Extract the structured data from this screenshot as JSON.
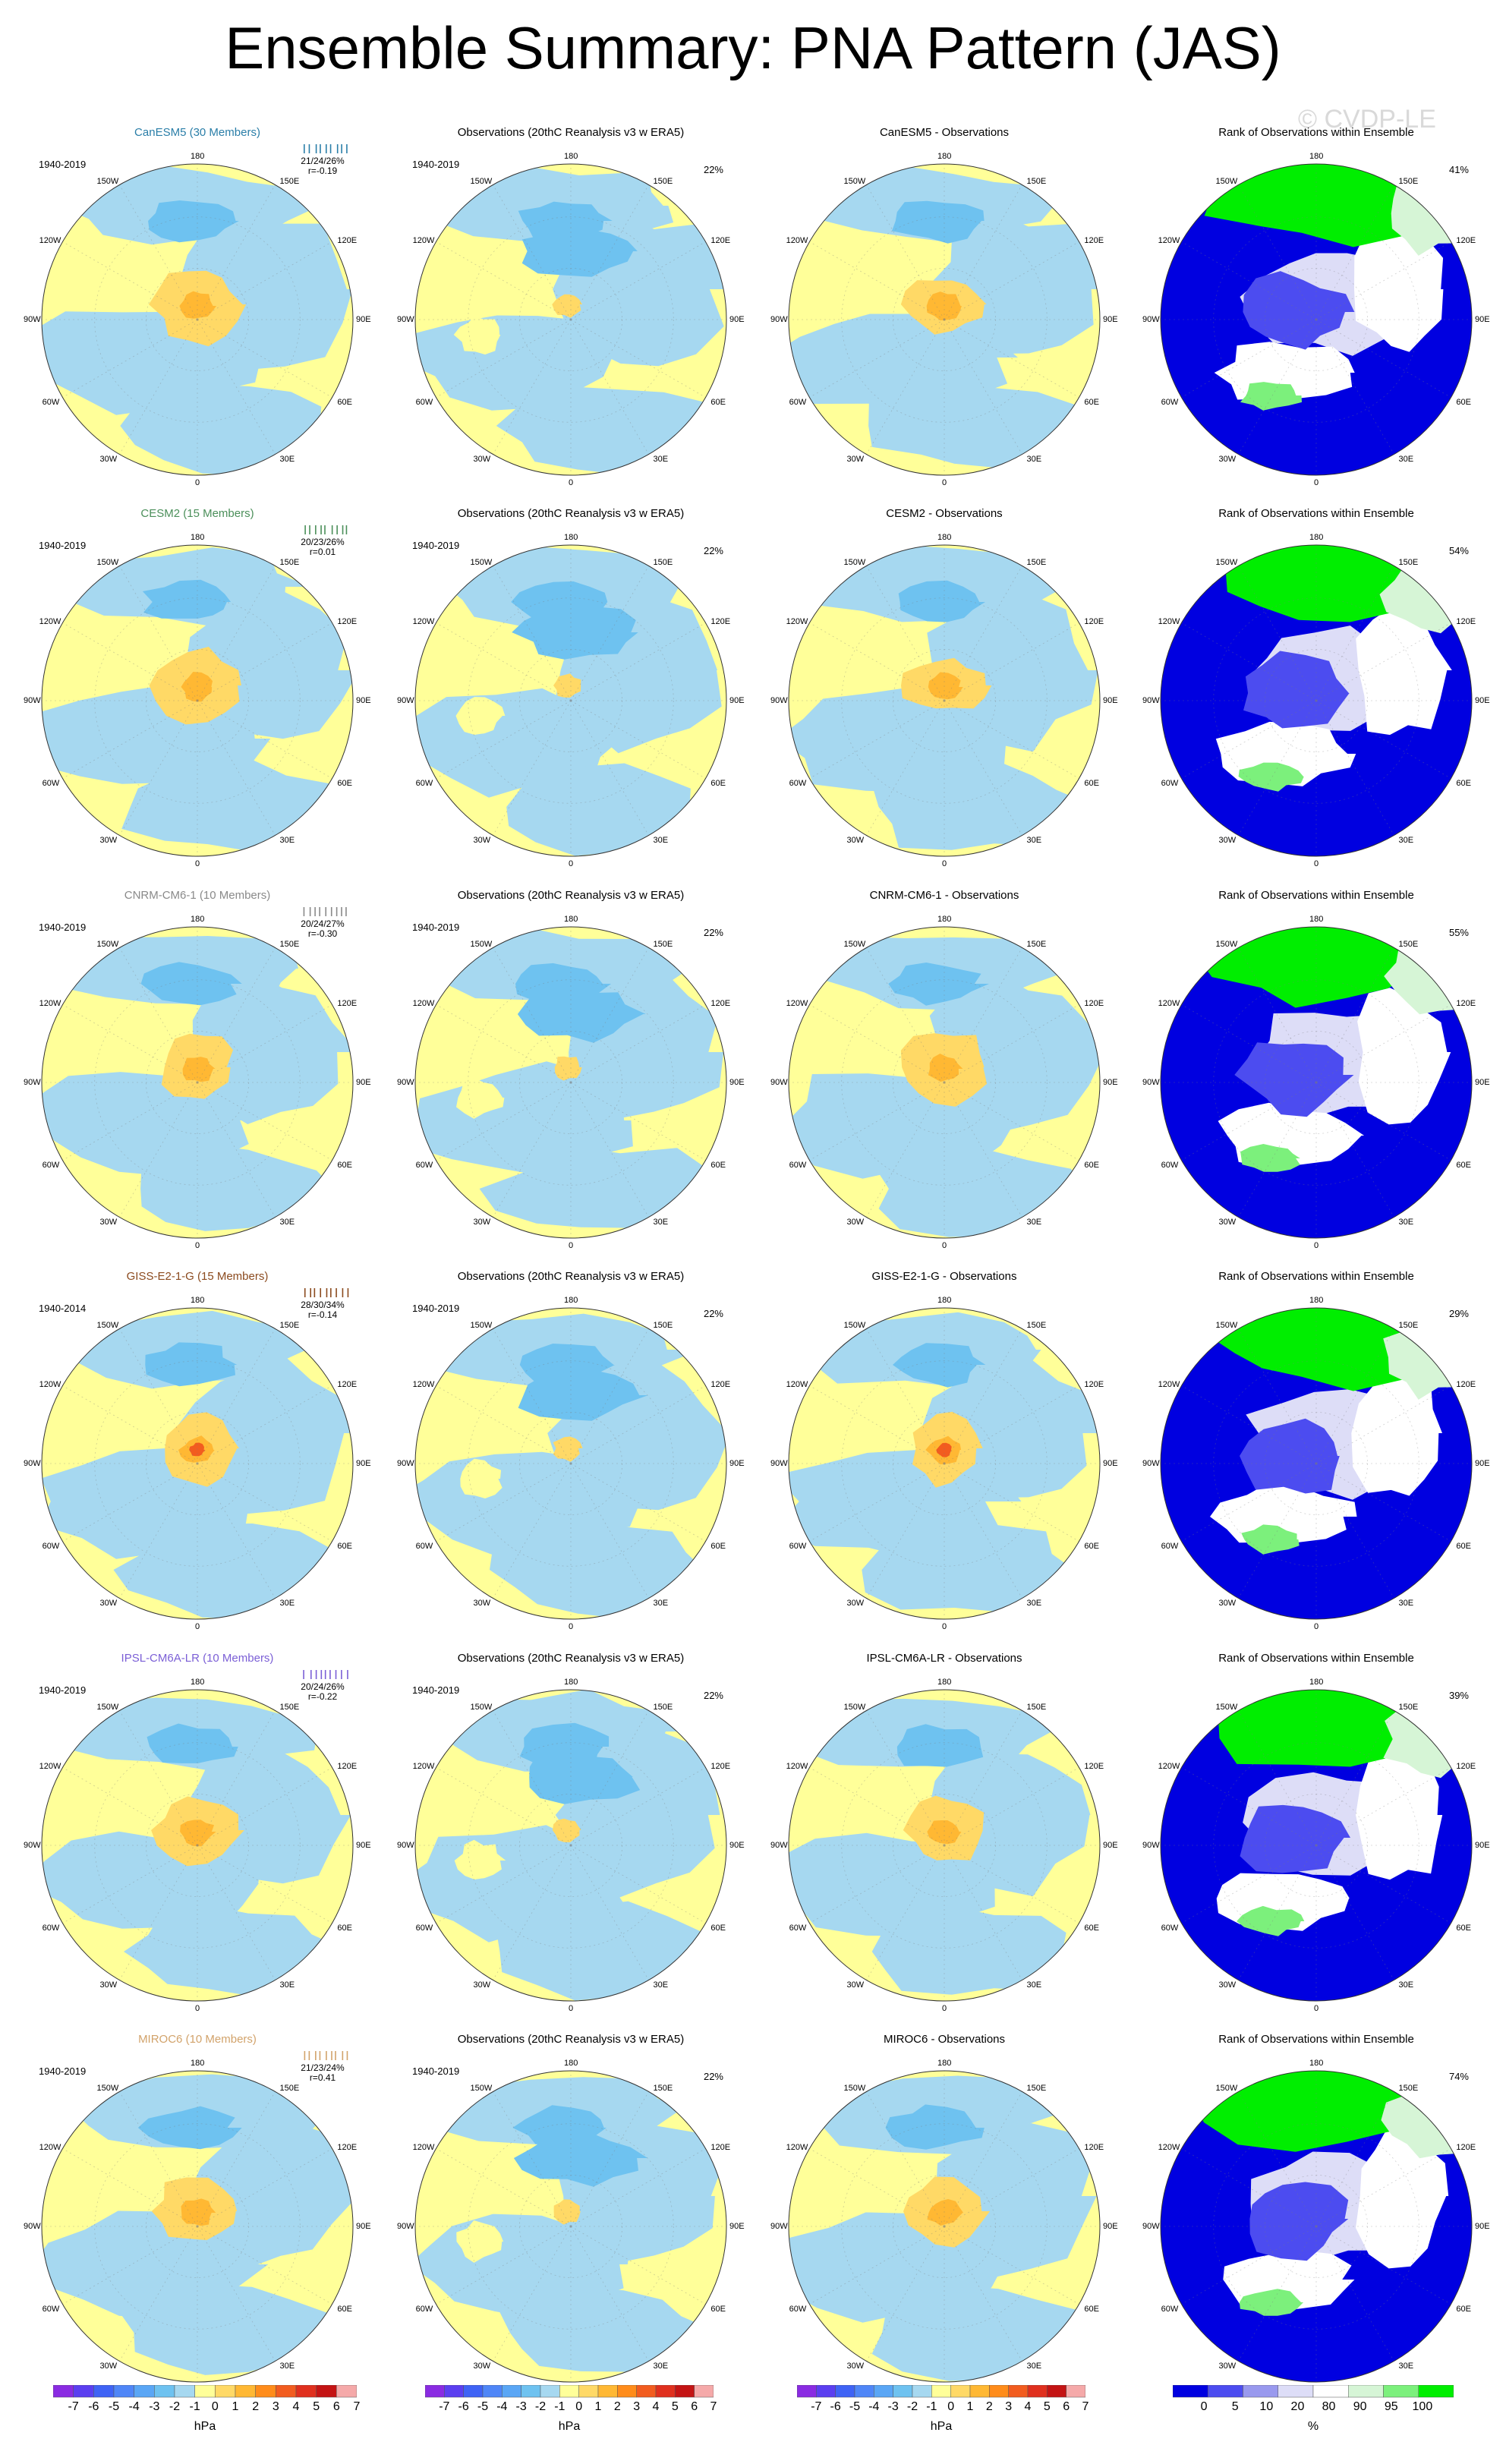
{
  "title": "Ensemble Summary: PNA Pattern (JAS)",
  "watermark": "© CVDP-LE",
  "map_labels": {
    "top": "180",
    "bottom": "0",
    "left": "90W",
    "right": "90E",
    "upper_left": "150W",
    "upper_right": "150E",
    "mid_upper_left": "120W",
    "mid_upper_right": "120E",
    "mid_lower_left": "60W",
    "mid_lower_right": "60E",
    "lower_left": "30W",
    "lower_right": "30E"
  },
  "rows": [
    {
      "model": {
        "title": "CanESM5 (30 Members)",
        "color": "#2a7ea8",
        "period": "1940-2019",
        "stats": "21/24/26%",
        "r": "r=-0.19"
      },
      "obs": {
        "title": "Observations (20thC Reanalysis v3 w ERA5)",
        "period": "1940-2019",
        "pct": "22%"
      },
      "diff": {
        "title": "CanESM5 - Observations"
      },
      "rank": {
        "title": "Rank of Observations within Ensemble",
        "pct": "41%"
      }
    },
    {
      "model": {
        "title": "CESM2 (15 Members)",
        "color": "#4b8f5a",
        "period": "1940-2019",
        "stats": "20/23/26%",
        "r": "r=0.01"
      },
      "obs": {
        "title": "Observations (20thC Reanalysis v3 w ERA5)",
        "period": "1940-2019",
        "pct": "22%"
      },
      "diff": {
        "title": "CESM2 - Observations"
      },
      "rank": {
        "title": "Rank of Observations within Ensemble",
        "pct": "54%"
      }
    },
    {
      "model": {
        "title": "CNRM-CM6-1 (10 Members)",
        "color": "#8a8a8a",
        "period": "1940-2019",
        "stats": "20/24/27%",
        "r": "r=-0.30"
      },
      "obs": {
        "title": "Observations (20thC Reanalysis v3 w ERA5)",
        "period": "1940-2019",
        "pct": "22%"
      },
      "diff": {
        "title": "CNRM-CM6-1 - Observations"
      },
      "rank": {
        "title": "Rank of Observations within Ensemble",
        "pct": "55%"
      }
    },
    {
      "model": {
        "title": "GISS-E2-1-G (15 Members)",
        "color": "#8b4a1e",
        "period": "1940-2014",
        "stats": "28/30/34%",
        "r": "r=-0.14"
      },
      "obs": {
        "title": "Observations (20thC Reanalysis v3 w ERA5)",
        "period": "1940-2019",
        "pct": "22%"
      },
      "diff": {
        "title": "GISS-E2-1-G - Observations"
      },
      "rank": {
        "title": "Rank of Observations within Ensemble",
        "pct": "29%"
      }
    },
    {
      "model": {
        "title": "IPSL-CM6A-LR (10 Members)",
        "color": "#7b5fd6",
        "period": "1940-2019",
        "stats": "20/24/26%",
        "r": "r=-0.22"
      },
      "obs": {
        "title": "Observations (20thC Reanalysis v3 w ERA5)",
        "period": "1940-2019",
        "pct": "22%"
      },
      "diff": {
        "title": "IPSL-CM6A-LR - Observations"
      },
      "rank": {
        "title": "Rank of Observations within Ensemble",
        "pct": "39%"
      }
    },
    {
      "model": {
        "title": "MIROC6 (10 Members)",
        "color": "#d2a36b",
        "period": "1940-2019",
        "stats": "21/23/24%",
        "r": "r=0.41"
      },
      "obs": {
        "title": "Observations (20thC Reanalysis v3 w ERA5)",
        "period": "1940-2019",
        "pct": "22%"
      },
      "diff": {
        "title": "MIROC6 - Observations"
      },
      "rank": {
        "title": "Rank of Observations within Ensemble",
        "pct": "74%"
      }
    }
  ],
  "colorbars": {
    "hpa": {
      "units": "hPa",
      "ticks": [
        "-7",
        "-6",
        "-5",
        "-4",
        "-3",
        "-2",
        "-1",
        "0",
        "1",
        "2",
        "3",
        "4",
        "5",
        "6",
        "7"
      ],
      "colors": [
        "#8a2be2",
        "#5b3ff0",
        "#3f63f5",
        "#4f86f7",
        "#5aa6f5",
        "#6ec2f0",
        "#a6d8f0",
        "#ffff99",
        "#ffd966",
        "#ffb833",
        "#ff8c1a",
        "#f25c1f",
        "#e0301e",
        "#c41414",
        "#f5a9a9"
      ]
    },
    "pct": {
      "units": "%",
      "ticks": [
        "0",
        "5",
        "10",
        "20",
        "80",
        "90",
        "95",
        "100"
      ],
      "colors": [
        "#0000e0",
        "#4c4cf0",
        "#9999ee",
        "#ddddf7",
        "#ffffff",
        "#d6f5d6",
        "#7cf07c",
        "#00ee00"
      ]
    }
  },
  "chart_data": [
    {
      "type": "heatmap",
      "title": "CanESM5 (30 Members)",
      "units": "hPa",
      "clim": [
        -7,
        7
      ],
      "pattern": "PNA"
    },
    {
      "type": "heatmap",
      "title": "Observations (20thC Reanalysis v3 w ERA5)",
      "units": "hPa",
      "clim": [
        -7,
        7
      ]
    },
    {
      "type": "heatmap",
      "title": "Rank of Observations within Ensemble",
      "units": "%",
      "clim": [
        0,
        100
      ]
    }
  ]
}
